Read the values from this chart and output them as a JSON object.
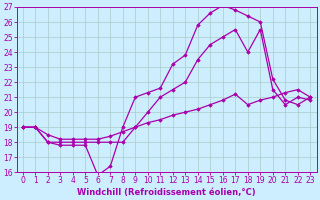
{
  "background_color": "#cceeff",
  "grid_color": "#aacccc",
  "line_color": "#aa00aa",
  "xlim": [
    -0.5,
    23.5
  ],
  "ylim": [
    16,
    27
  ],
  "yticks": [
    16,
    17,
    18,
    19,
    20,
    21,
    22,
    23,
    24,
    25,
    26,
    27
  ],
  "xticks": [
    0,
    1,
    2,
    3,
    4,
    5,
    6,
    7,
    8,
    9,
    10,
    11,
    12,
    13,
    14,
    15,
    16,
    17,
    18,
    19,
    20,
    21,
    22,
    23
  ],
  "xlabel": "Windchill (Refroidissement éolien,°C)",
  "line1_x": [
    0,
    1,
    2,
    3,
    4,
    5,
    6,
    7,
    8,
    9,
    10,
    11,
    12,
    13,
    14,
    15,
    16,
    17,
    18,
    19,
    20,
    21,
    22,
    23
  ],
  "line1_y": [
    19.0,
    19.0,
    18.0,
    17.8,
    17.8,
    17.8,
    15.8,
    16.4,
    19.0,
    21.0,
    21.3,
    21.6,
    23.2,
    23.8,
    25.8,
    26.6,
    27.1,
    26.8,
    26.4,
    26.0,
    22.2,
    20.8,
    20.5,
    21.0
  ],
  "line2_x": [
    0,
    1,
    2,
    3,
    4,
    5,
    6,
    7,
    8,
    9,
    10,
    11,
    12,
    13,
    14,
    15,
    16,
    17,
    18,
    19,
    20,
    21,
    22,
    23
  ],
  "line2_y": [
    19.0,
    19.0,
    18.0,
    18.0,
    18.0,
    18.0,
    18.0,
    18.0,
    18.0,
    19.0,
    20.0,
    21.0,
    21.5,
    22.0,
    23.5,
    24.5,
    25.0,
    25.5,
    24.0,
    25.5,
    21.5,
    20.5,
    21.0,
    20.8
  ],
  "line3_x": [
    0,
    1,
    2,
    3,
    4,
    5,
    6,
    7,
    8,
    9,
    10,
    11,
    12,
    13,
    14,
    15,
    16,
    17,
    18,
    19,
    20,
    21,
    22,
    23
  ],
  "line3_y": [
    19.0,
    19.0,
    18.5,
    18.2,
    18.2,
    18.2,
    18.2,
    18.4,
    18.7,
    19.0,
    19.3,
    19.5,
    19.8,
    20.0,
    20.2,
    20.5,
    20.8,
    21.2,
    20.5,
    20.8,
    21.0,
    21.3,
    21.5,
    21.0
  ],
  "marker": "D",
  "markersize": 1.8,
  "linewidth": 0.9,
  "xlabel_fontsize": 6,
  "tick_fontsize": 5.5
}
